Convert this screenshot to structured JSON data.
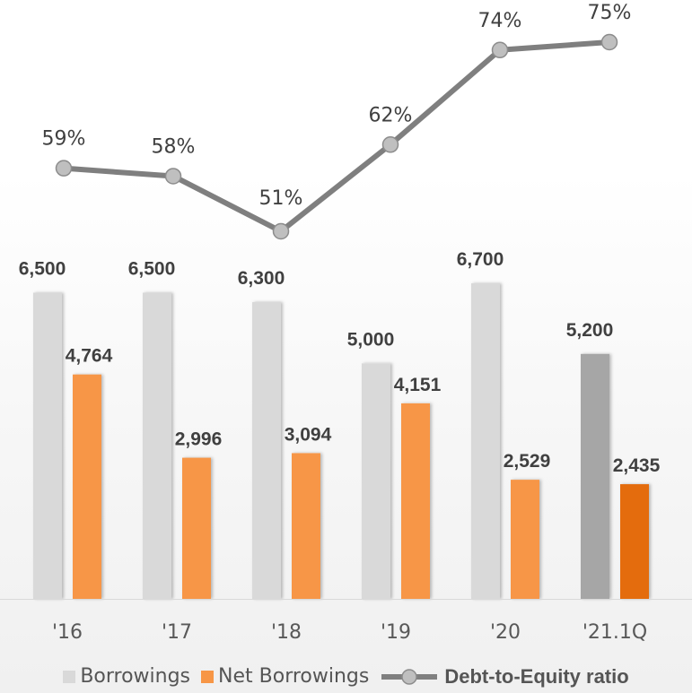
{
  "chart_data": {
    "type": "bar",
    "categories": [
      "'16",
      "'17",
      "'18",
      "'19",
      "'20",
      "'21.1Q"
    ],
    "series": [
      {
        "name": "Borrowings",
        "type": "bar",
        "values": [
          6500,
          6500,
          6300,
          5000,
          6700,
          5200
        ],
        "labels": [
          "6,500",
          "6,500",
          "6,300",
          "5,000",
          "6,700",
          "5,200"
        ]
      },
      {
        "name": "Net Borrowings",
        "type": "bar",
        "values": [
          4764,
          2996,
          3094,
          4151,
          2529,
          2435
        ],
        "labels": [
          "4,764",
          "2,996",
          "3,094",
          "4,151",
          "2,529",
          "2,435"
        ]
      },
      {
        "name": "Debt-to-Equity ratio",
        "type": "line",
        "values": [
          59,
          58,
          51,
          62,
          74,
          75
        ],
        "labels": [
          "59%",
          "58%",
          "51%",
          "62%",
          "74%",
          "75%"
        ]
      }
    ],
    "ylim": [
      0,
      6700
    ],
    "legend_position": "bottom",
    "grid": false
  },
  "colors": {
    "borrowings": "#d9d9d9",
    "borrowings_highlight": "#a6a6a6",
    "net_borrowings": "#f79646",
    "net_borrowings_highlight": "#e46c0a",
    "ratio_line": "#7f7f7f",
    "ratio_marker": "#bfbfbf",
    "label_text": "#404040",
    "axis_text": "#595959"
  },
  "legend": {
    "borrowings": "Borrowings",
    "net_borrowings": "Net Borrowings",
    "ratio": "Debt-to-Equity ratio"
  }
}
